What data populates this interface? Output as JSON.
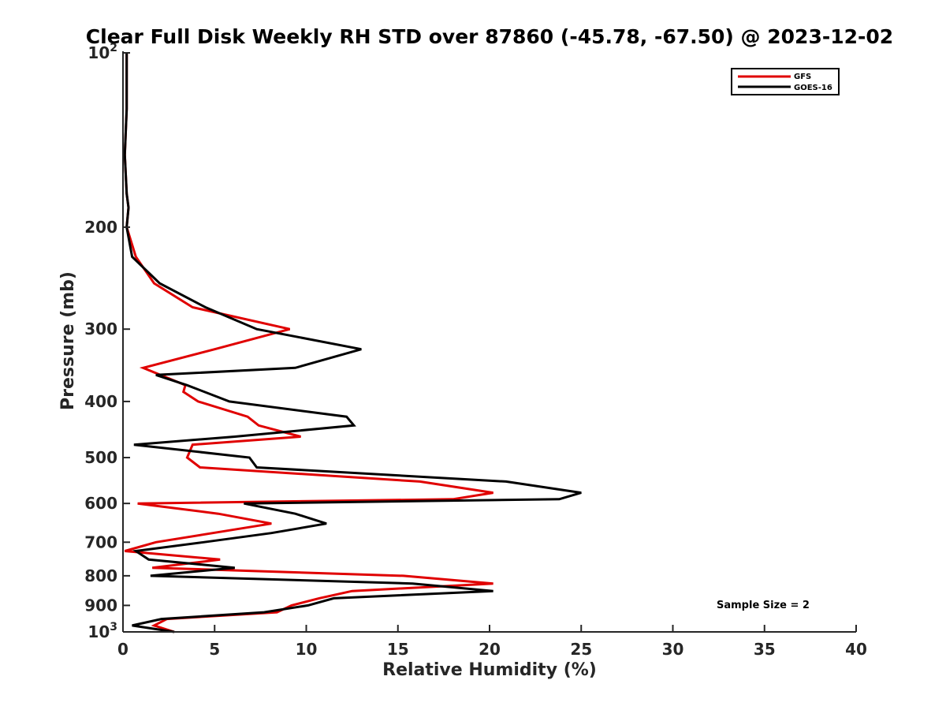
{
  "chart_data": {
    "type": "line",
    "title": "Clear Full Disk Weekly RH STD over 87860 (-45.78, -67.50) @ 2023-12-02",
    "xlabel": "Relative Humidity (%)",
    "ylabel": "Pressure (mb)",
    "xlim": [
      0,
      40
    ],
    "ylim": [
      100,
      1000
    ],
    "y_scale": "log",
    "y_reversed": true,
    "grid": false,
    "legend_position": "top-right",
    "x_ticks": [
      "0",
      "5",
      "10",
      "15",
      "20",
      "25",
      "30",
      "35",
      "40"
    ],
    "y_ticks": [
      {
        "value": 100,
        "base": "10",
        "exp": "2"
      },
      {
        "value": 200,
        "label": "200"
      },
      {
        "value": 300,
        "label": "300"
      },
      {
        "value": 400,
        "label": "400"
      },
      {
        "value": 500,
        "label": "500"
      },
      {
        "value": 600,
        "label": "600"
      },
      {
        "value": 700,
        "label": "700"
      },
      {
        "value": 800,
        "label": "800"
      },
      {
        "value": 900,
        "label": "900"
      },
      {
        "value": 1000,
        "base": "10",
        "exp": "3"
      }
    ],
    "series": [
      {
        "name": "GFS",
        "color": "#e00000",
        "points": [
          [
            0.2,
            100
          ],
          [
            0.2,
            125
          ],
          [
            0.1,
            150
          ],
          [
            0.2,
            175
          ],
          [
            0.3,
            185
          ],
          [
            0.2,
            200
          ],
          [
            0.7,
            225
          ],
          [
            1.7,
            250
          ],
          [
            3.8,
            275
          ],
          [
            9.1,
            300
          ],
          [
            5.0,
            325
          ],
          [
            1.1,
            350
          ],
          [
            3.4,
            375
          ],
          [
            3.3,
            385
          ],
          [
            4.1,
            400
          ],
          [
            6.8,
            425
          ],
          [
            7.4,
            440
          ],
          [
            9.7,
            460
          ],
          [
            3.8,
            475
          ],
          [
            3.5,
            500
          ],
          [
            4.2,
            520
          ],
          [
            16.2,
            550
          ],
          [
            20.2,
            575
          ],
          [
            18.0,
            590
          ],
          [
            0.8,
            600
          ],
          [
            5.2,
            625
          ],
          [
            8.1,
            650
          ],
          [
            4.9,
            675
          ],
          [
            1.8,
            700
          ],
          [
            0.1,
            725
          ],
          [
            5.3,
            750
          ],
          [
            1.6,
            775
          ],
          [
            15.3,
            800
          ],
          [
            20.2,
            825
          ],
          [
            12.5,
            850
          ],
          [
            10.7,
            875
          ],
          [
            9.2,
            900
          ],
          [
            8.4,
            925
          ],
          [
            2.4,
            950
          ],
          [
            1.7,
            975
          ],
          [
            2.8,
            1000
          ]
        ]
      },
      {
        "name": "GOES-16",
        "color": "#000000",
        "points": [
          [
            0.2,
            100
          ],
          [
            0.2,
            125
          ],
          [
            0.1,
            150
          ],
          [
            0.2,
            175
          ],
          [
            0.3,
            185
          ],
          [
            0.2,
            200
          ],
          [
            0.5,
            225
          ],
          [
            2.0,
            250
          ],
          [
            4.5,
            275
          ],
          [
            7.3,
            300
          ],
          [
            13.0,
            325
          ],
          [
            9.4,
            350
          ],
          [
            1.8,
            360
          ],
          [
            3.5,
            375
          ],
          [
            5.8,
            400
          ],
          [
            12.2,
            425
          ],
          [
            12.6,
            440
          ],
          [
            6.1,
            460
          ],
          [
            0.6,
            475
          ],
          [
            6.9,
            500
          ],
          [
            7.3,
            520
          ],
          [
            20.9,
            550
          ],
          [
            25.0,
            575
          ],
          [
            23.8,
            590
          ],
          [
            6.6,
            600
          ],
          [
            9.4,
            625
          ],
          [
            11.1,
            650
          ],
          [
            8.1,
            675
          ],
          [
            4.4,
            700
          ],
          [
            0.7,
            725
          ],
          [
            1.4,
            750
          ],
          [
            6.1,
            775
          ],
          [
            1.5,
            800
          ],
          [
            15.8,
            825
          ],
          [
            20.2,
            850
          ],
          [
            11.5,
            875
          ],
          [
            10.1,
            900
          ],
          [
            7.7,
            925
          ],
          [
            2.1,
            950
          ],
          [
            0.5,
            975
          ],
          [
            2.8,
            1000
          ]
        ]
      }
    ],
    "annotations": [
      {
        "text": "Sample Size = 2"
      }
    ]
  }
}
